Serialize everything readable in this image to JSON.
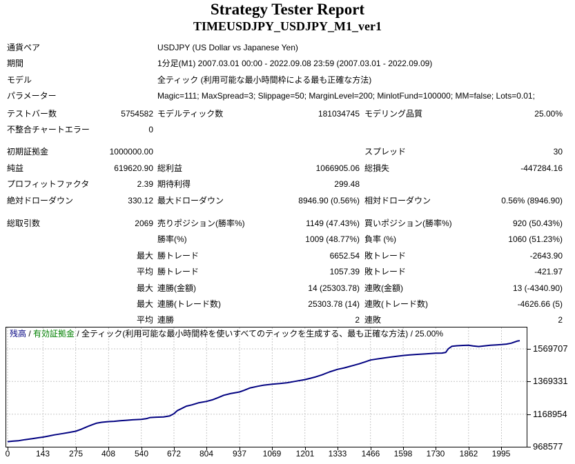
{
  "title": "Strategy Tester Report",
  "subtitle": "TIMEUSDJPY_USDJPY_M1_ver1",
  "report": {
    "rows": [
      {
        "label1": "通貨ペア",
        "label2": "USDJPY (US Dollar vs Japanese Yen)"
      },
      {
        "label1": "期間",
        "label2": "1分足(M1) 2007.03.01 00:00 - 2022.09.08 23:59 (2007.03.01 - 2022.09.09)"
      },
      {
        "label1": "モデル",
        "label2": "全ティック (利用可能な最小時間枠による最も正確な方法)"
      },
      {
        "label1": "パラメーター",
        "label2": "Magic=111; MaxSpread=3; Slippage=50; MarginLevel=200; MinlotFund=100000; MM=false; Lots=0.01;"
      },
      {
        "label1": "テストバー数",
        "value1": "5754582",
        "label2": "モデルティック数",
        "value2": "181034745",
        "label3": "モデリング品質",
        "value3": "25.00%"
      },
      {
        "label1": "不整合チャートエラー",
        "value1": "0"
      },
      {
        "label1": "初期証拠金",
        "value1": "1000000.00",
        "label3": "スプレッド",
        "value3": "30"
      },
      {
        "label1": "純益",
        "value1": "619620.90",
        "label2": "総利益",
        "value2": "1066905.06",
        "label3": "総損失",
        "value3": "-447284.16"
      },
      {
        "label1": "プロフィットファクタ",
        "value1": "2.39",
        "label2": "期待利得",
        "value2": "299.48"
      },
      {
        "label1": "絶対ドローダウン",
        "value1": "330.12",
        "label2": "最大ドローダウン",
        "value2": "8946.90 (0.56%)",
        "label3": "相対ドローダウン",
        "value3": "0.56% (8946.90)"
      },
      {
        "label1": "総取引数",
        "value1": "2069",
        "label2": "売りポジション(勝率%)",
        "value2": "1149 (47.43%)",
        "label3": "買いポジション(勝率%)",
        "value3": "920 (50.43%)"
      },
      {
        "label2": "勝率(%)",
        "value2": "1009 (48.77%)",
        "label3": "負率 (%)",
        "value3": "1060 (51.23%)"
      },
      {
        "value1": "最大",
        "label2": "勝トレード",
        "value2": "6652.54",
        "label3": "敗トレード",
        "value3": "-2643.90"
      },
      {
        "value1": "平均",
        "label2": "勝トレード",
        "value2": "1057.39",
        "label3": "敗トレード",
        "value3": "-421.97"
      },
      {
        "value1": "最大",
        "label2": "連勝(金額)",
        "value2": "14 (25303.78)",
        "label3": "連敗(金額)",
        "value3": "13 (-4340.90)"
      },
      {
        "value1": "最大",
        "label2": "連勝(トレード数)",
        "value2": "25303.78 (14)",
        "label3": "連敗(トレード数)",
        "value3": "-4626.66 (5)"
      },
      {
        "value1": "平均",
        "label2": "連勝",
        "value2": "2",
        "label3": "連敗",
        "value3": "2"
      }
    ]
  },
  "chart_data": {
    "type": "line",
    "legend_parts": [
      {
        "text": "残高",
        "color": "#000080"
      },
      {
        "text": " / ",
        "color": "#000000"
      },
      {
        "text": "有効証拠金",
        "color": "#008000"
      },
      {
        "text": " / 全ティック(利用可能な最小時間枠を使いすべてのティックを生成する、最も正確な方法) / 25.00%",
        "color": "#000000"
      }
    ],
    "x_ticks": [
      0,
      143,
      275,
      408,
      540,
      672,
      804,
      937,
      1069,
      1201,
      1333,
      1466,
      1598,
      1730,
      1862,
      1995
    ],
    "y_ticks": [
      968577,
      1168954,
      1369331,
      1569707
    ],
    "xlim": [
      0,
      2069
    ],
    "ylim": [
      968577,
      1701037
    ],
    "grid": true,
    "grid_color": "#c6c6c6",
    "series": [
      {
        "name": "残高",
        "color": "#000080",
        "points": [
          [
            0,
            1000000
          ],
          [
            20,
            1003000
          ],
          [
            45,
            1006000
          ],
          [
            70,
            1012000
          ],
          [
            100,
            1018000
          ],
          [
            125,
            1024000
          ],
          [
            143,
            1028000
          ],
          [
            165,
            1034000
          ],
          [
            190,
            1042000
          ],
          [
            223,
            1050000
          ],
          [
            250,
            1057000
          ],
          [
            275,
            1064000
          ],
          [
            295,
            1075000
          ],
          [
            322,
            1092000
          ],
          [
            340,
            1103000
          ],
          [
            358,
            1113000
          ],
          [
            380,
            1119000
          ],
          [
            408,
            1123000
          ],
          [
            430,
            1125000
          ],
          [
            455,
            1128000
          ],
          [
            480,
            1131000
          ],
          [
            505,
            1134000
          ],
          [
            540,
            1137000
          ],
          [
            560,
            1141000
          ],
          [
            576,
            1148000
          ],
          [
            600,
            1150000
          ],
          [
            630,
            1152000
          ],
          [
            655,
            1158000
          ],
          [
            672,
            1172000
          ],
          [
            685,
            1190000
          ],
          [
            705,
            1205000
          ],
          [
            722,
            1218000
          ],
          [
            745,
            1226000
          ],
          [
            770,
            1238000
          ],
          [
            804,
            1247000
          ],
          [
            830,
            1258000
          ],
          [
            850,
            1270000
          ],
          [
            873,
            1285000
          ],
          [
            900,
            1295000
          ],
          [
            937,
            1305000
          ],
          [
            955,
            1315000
          ],
          [
            980,
            1330000
          ],
          [
            1010,
            1340000
          ],
          [
            1035,
            1347000
          ],
          [
            1069,
            1353000
          ],
          [
            1100,
            1357000
          ],
          [
            1130,
            1362000
          ],
          [
            1160,
            1370000
          ],
          [
            1201,
            1381000
          ],
          [
            1225,
            1390000
          ],
          [
            1245,
            1398000
          ],
          [
            1270,
            1410000
          ],
          [
            1300,
            1428000
          ],
          [
            1333,
            1444000
          ],
          [
            1360,
            1453000
          ],
          [
            1390,
            1465000
          ],
          [
            1420,
            1478000
          ],
          [
            1445,
            1490000
          ],
          [
            1466,
            1501000
          ],
          [
            1490,
            1507000
          ],
          [
            1520,
            1514000
          ],
          [
            1550,
            1520000
          ],
          [
            1575,
            1525000
          ],
          [
            1598,
            1529000
          ],
          [
            1625,
            1533000
          ],
          [
            1655,
            1536000
          ],
          [
            1690,
            1539000
          ],
          [
            1730,
            1543000
          ],
          [
            1755,
            1544000
          ],
          [
            1770,
            1548000
          ],
          [
            1780,
            1570000
          ],
          [
            1795,
            1586000
          ],
          [
            1815,
            1589000
          ],
          [
            1840,
            1591000
          ],
          [
            1862,
            1592000
          ],
          [
            1880,
            1588000
          ],
          [
            1903,
            1584000
          ],
          [
            1925,
            1588000
          ],
          [
            1950,
            1592000
          ],
          [
            1975,
            1594000
          ],
          [
            1995,
            1596000
          ],
          [
            2015,
            1599000
          ],
          [
            2035,
            1605000
          ],
          [
            2050,
            1613000
          ],
          [
            2060,
            1618000
          ],
          [
            2069,
            1620000
          ]
        ]
      }
    ]
  }
}
